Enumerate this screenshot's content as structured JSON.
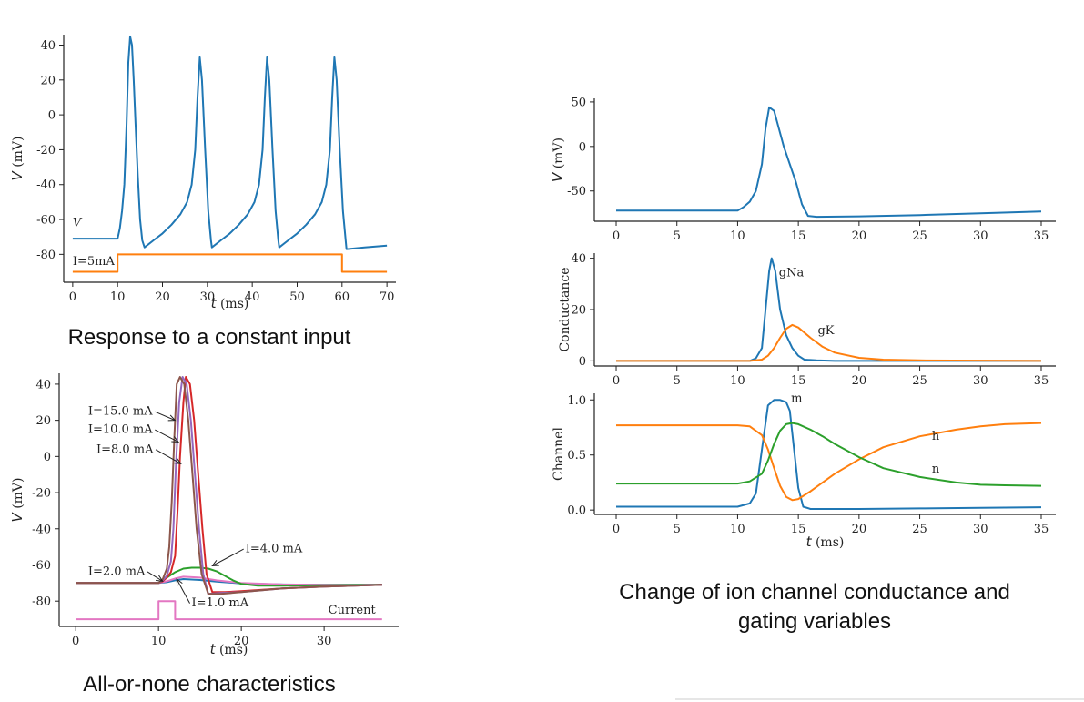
{
  "captions": {
    "constant": "Response to a constant input",
    "allornone": "All-or-none characteristics",
    "channels_line1": "Change of ion channel conductance and",
    "channels_line2": "gating variables"
  },
  "chart_data": [
    {
      "id": "constant",
      "type": "line",
      "xlabel": "t (ms)",
      "ylabel": "V (mV)",
      "xlim": [
        -2,
        72
      ],
      "ylim": [
        -96,
        46
      ],
      "xticks": [
        0,
        10,
        20,
        30,
        40,
        50,
        60,
        70
      ],
      "yticks": [
        -80,
        -60,
        -40,
        -20,
        0,
        20,
        40
      ],
      "grid": false,
      "series": [
        {
          "name": "V",
          "color": "#1f77b4",
          "x": [
            0,
            10,
            10.5,
            11,
            11.5,
            12,
            12.4,
            12.8,
            13.2,
            13.6,
            14,
            14.5,
            15,
            15.5,
            16,
            18,
            20,
            22,
            24,
            25.5,
            26.5,
            27.3,
            27.8,
            28.3,
            28.8,
            29.5,
            30.2,
            30.8,
            31,
            33,
            35,
            37,
            39,
            40.5,
            41.5,
            42.3,
            42.8,
            43.3,
            43.8,
            44.5,
            45.2,
            45.8,
            46,
            48,
            50,
            52,
            54,
            55.5,
            56.5,
            57.3,
            57.8,
            58.3,
            58.8,
            59.5,
            60.2,
            60.8,
            61,
            65,
            70
          ],
          "values": [
            -71,
            -71,
            -65,
            -55,
            -40,
            -5,
            30,
            45,
            40,
            20,
            -5,
            -35,
            -60,
            -72,
            -76,
            -72,
            -68,
            -63,
            -57,
            -50,
            -40,
            -20,
            10,
            33,
            20,
            -20,
            -55,
            -72,
            -76,
            -72,
            -68,
            -63,
            -57,
            -50,
            -40,
            -20,
            10,
            33,
            20,
            -20,
            -55,
            -72,
            -76,
            -72,
            -68,
            -63,
            -57,
            -50,
            -40,
            -20,
            10,
            33,
            20,
            -20,
            -55,
            -72,
            -77,
            -76,
            -75
          ]
        },
        {
          "name": "I=5mA",
          "color": "#ff7f0e",
          "x": [
            0,
            10,
            10,
            60,
            60,
            70
          ],
          "values": [
            -90,
            -90,
            -80,
            -80,
            -90,
            -90
          ]
        }
      ],
      "labels": [
        {
          "text": "V",
          "x": 0,
          "y": -64
        },
        {
          "text": "I=5mA",
          "x": 0,
          "y": -86
        }
      ]
    },
    {
      "id": "allornone",
      "type": "line",
      "xlabel": "t (ms)",
      "ylabel": "V (mV)",
      "xlim": [
        -2,
        39
      ],
      "ylim": [
        -94,
        46
      ],
      "xticks": [
        0,
        10,
        20,
        30
      ],
      "yticks": [
        -80,
        -60,
        -40,
        -20,
        0,
        20,
        40
      ],
      "grid": false,
      "series": [
        {
          "name": "I=1.0 mA",
          "color": "#1f77b4",
          "x": [
            0,
            10,
            11,
            12,
            13,
            15,
            17,
            20,
            25,
            30,
            37
          ],
          "values": [
            -70,
            -70,
            -69.5,
            -68.5,
            -67.8,
            -68.3,
            -69.2,
            -70.2,
            -70.8,
            -71,
            -71
          ]
        },
        {
          "name": "I=2.0 mA",
          "color": "#e377c2",
          "x": [
            0,
            10,
            11,
            12,
            13,
            15,
            17,
            20,
            25,
            30,
            37
          ],
          "values": [
            -70,
            -70,
            -69,
            -67.5,
            -66.5,
            -67,
            -68.5,
            -70,
            -70.8,
            -71,
            -71
          ]
        },
        {
          "name": "I=4.0 mA",
          "color": "#2ca02c",
          "x": [
            0,
            10,
            11,
            12,
            13,
            14,
            15,
            16,
            17,
            18,
            19,
            20,
            22,
            25,
            30,
            37
          ],
          "values": [
            -70,
            -70,
            -67,
            -64,
            -62,
            -61.5,
            -61.5,
            -62,
            -63.5,
            -66,
            -68.5,
            -70.5,
            -71.5,
            -71.5,
            -71.2,
            -71
          ]
        },
        {
          "name": "I=8.0 mA",
          "color": "#d62728",
          "x": [
            0,
            10,
            10.5,
            11,
            11.5,
            12,
            12.3,
            12.6,
            13,
            13.3,
            13.8,
            14.3,
            14.8,
            15.3,
            15.8,
            16.5,
            18,
            20,
            25,
            30,
            37
          ],
          "values": [
            -70,
            -70,
            -69,
            -67,
            -64,
            -55,
            -30,
            0,
            30,
            44,
            40,
            20,
            -10,
            -40,
            -65,
            -75,
            -75,
            -74.5,
            -73,
            -72,
            -71
          ]
        },
        {
          "name": "I=10.0 mA",
          "color": "#9467bd",
          "x": [
            0,
            10,
            10.5,
            11,
            11.5,
            11.8,
            12.1,
            12.5,
            12.9,
            13.4,
            13.9,
            14.4,
            14.9,
            15.4,
            16,
            17.5,
            20,
            25,
            30,
            37
          ],
          "values": [
            -70,
            -70,
            -68.5,
            -66,
            -58,
            -40,
            -5,
            30,
            44,
            40,
            20,
            -10,
            -40,
            -65,
            -76,
            -75.5,
            -75,
            -73,
            -72,
            -71
          ]
        },
        {
          "name": "I=15.0 mA",
          "color": "#8c564b",
          "x": [
            0,
            10,
            10.5,
            11,
            11.3,
            11.6,
            11.9,
            12.2,
            12.6,
            13.1,
            13.6,
            14.1,
            14.6,
            15.2,
            16,
            17.5,
            20,
            25,
            30,
            37
          ],
          "values": [
            -70,
            -70,
            -68,
            -62,
            -50,
            -25,
            10,
            40,
            44,
            40,
            20,
            -10,
            -40,
            -65,
            -76,
            -76,
            -75,
            -73,
            -72,
            -71
          ]
        },
        {
          "name": "Current",
          "color": "#e377c2",
          "x": [
            0,
            10,
            10,
            12,
            12,
            37
          ],
          "values": [
            -90,
            -90,
            -80,
            -80,
            -90,
            -90
          ]
        }
      ],
      "labels": [
        {
          "text": "I=15.0 mA",
          "x": 1.5,
          "y": 23,
          "arrow_to": [
            12.0,
            20
          ]
        },
        {
          "text": "I=10.0 mA",
          "x": 1.5,
          "y": 13,
          "arrow_to": [
            12.4,
            8
          ]
        },
        {
          "text": "I=8.0 mA",
          "x": 2.5,
          "y": 2,
          "arrow_to": [
            12.7,
            -4
          ]
        },
        {
          "text": "I=4.0 mA",
          "x": 20.5,
          "y": -53,
          "arrow_to": [
            16.5,
            -60.5
          ]
        },
        {
          "text": "I=2.0 mA",
          "x": 1.5,
          "y": -65.5,
          "arrow_to": [
            10.5,
            -69
          ]
        },
        {
          "text": "I=1.0 mA",
          "x": 14.0,
          "y": -83,
          "arrow_to": [
            12.2,
            -67.8
          ]
        },
        {
          "text": "Current",
          "x": 30.5,
          "y": -87
        }
      ]
    },
    {
      "id": "voltage",
      "type": "line",
      "xlabel": "",
      "ylabel": "V (mV)",
      "xlim": [
        -1.8,
        36.2
      ],
      "ylim": [
        -84,
        54
      ],
      "xticks": [
        0,
        5,
        10,
        15,
        20,
        25,
        30,
        35
      ],
      "yticks": [
        -50,
        0,
        50
      ],
      "grid": false,
      "series": [
        {
          "name": "V",
          "color": "#1f77b4",
          "x": [
            0,
            10,
            10.5,
            11,
            11.5,
            12,
            12.3,
            12.6,
            13,
            13.4,
            13.8,
            14.3,
            14.8,
            15.3,
            15.8,
            16.5,
            20,
            25,
            30,
            35
          ],
          "values": [
            -72,
            -72,
            -68,
            -62,
            -50,
            -20,
            20,
            44,
            40,
            20,
            0,
            -20,
            -40,
            -65,
            -78,
            -79,
            -78.5,
            -77,
            -75,
            -73
          ]
        }
      ]
    },
    {
      "id": "conductance",
      "type": "line",
      "xlabel": "",
      "ylabel": "Conductance",
      "xlim": [
        -1.8,
        36.2
      ],
      "ylim": [
        -2,
        42
      ],
      "xticks": [
        0,
        5,
        10,
        15,
        20,
        25,
        30,
        35
      ],
      "yticks": [
        0,
        20,
        40
      ],
      "grid": false,
      "series": [
        {
          "name": "gNa",
          "color": "#1f77b4",
          "x": [
            0,
            11,
            11.5,
            12,
            12.3,
            12.6,
            12.8,
            13.1,
            13.5,
            14,
            14.5,
            15,
            15.5,
            16.5,
            18,
            20,
            35
          ],
          "values": [
            0,
            0,
            1,
            5,
            20,
            35,
            40,
            35,
            20,
            10,
            5,
            2,
            0.5,
            0.2,
            0,
            0,
            0
          ]
        },
        {
          "name": "gK",
          "color": "#ff7f0e",
          "x": [
            0,
            11,
            12,
            12.5,
            13,
            13.5,
            14,
            14.5,
            15,
            16,
            17,
            18,
            20,
            22,
            25,
            30,
            35
          ],
          "values": [
            0,
            0,
            0.5,
            2,
            5,
            9,
            12.5,
            14,
            13,
            9,
            5.5,
            3.2,
            1.2,
            0.5,
            0.2,
            0.1,
            0
          ]
        }
      ],
      "labels": [
        {
          "text": "gNa",
          "x": 13.4,
          "y": 33
        },
        {
          "text": "gK",
          "x": 16.6,
          "y": 10.5
        }
      ]
    },
    {
      "id": "channels",
      "type": "line",
      "xlabel": "t (ms)",
      "ylabel": "Channel",
      "xlim": [
        -1.8,
        36.2
      ],
      "ylim": [
        -0.04,
        1.06
      ],
      "xticks": [
        0,
        5,
        10,
        15,
        20,
        25,
        30,
        35
      ],
      "yticks": [
        0.0,
        0.5,
        1.0
      ],
      "grid": false,
      "series": [
        {
          "name": "m",
          "color": "#1f77b4",
          "x": [
            0,
            10,
            11,
            11.5,
            12,
            12.5,
            13,
            13.5,
            14,
            14.3,
            14.6,
            15,
            15.4,
            16,
            20,
            25,
            30,
            35
          ],
          "values": [
            0.03,
            0.03,
            0.06,
            0.15,
            0.55,
            0.95,
            1.0,
            1.0,
            0.98,
            0.9,
            0.6,
            0.2,
            0.03,
            0.01,
            0.01,
            0.015,
            0.02,
            0.025
          ]
        },
        {
          "name": "h",
          "color": "#ff7f0e",
          "x": [
            0,
            10,
            11,
            12,
            12.5,
            13,
            13.5,
            14,
            14.5,
            15,
            16,
            17,
            18,
            20,
            22,
            25,
            28,
            30,
            32,
            35
          ],
          "values": [
            0.77,
            0.77,
            0.76,
            0.68,
            0.55,
            0.38,
            0.22,
            0.12,
            0.09,
            0.1,
            0.17,
            0.25,
            0.33,
            0.46,
            0.57,
            0.67,
            0.73,
            0.76,
            0.78,
            0.79
          ]
        },
        {
          "name": "n",
          "color": "#2ca02c",
          "x": [
            0,
            10,
            11,
            12,
            12.5,
            13,
            13.5,
            14,
            14.5,
            15,
            16,
            17,
            18,
            20,
            22,
            25,
            28,
            30,
            32,
            35
          ],
          "values": [
            0.24,
            0.24,
            0.26,
            0.33,
            0.45,
            0.6,
            0.72,
            0.78,
            0.79,
            0.78,
            0.73,
            0.67,
            0.6,
            0.48,
            0.38,
            0.3,
            0.25,
            0.23,
            0.225,
            0.22
          ]
        }
      ],
      "labels": [
        {
          "text": "m",
          "x": 14.4,
          "y": 0.98
        },
        {
          "text": "h",
          "x": 26.0,
          "y": 0.64
        },
        {
          "text": "n",
          "x": 26.0,
          "y": 0.34
        }
      ]
    }
  ]
}
